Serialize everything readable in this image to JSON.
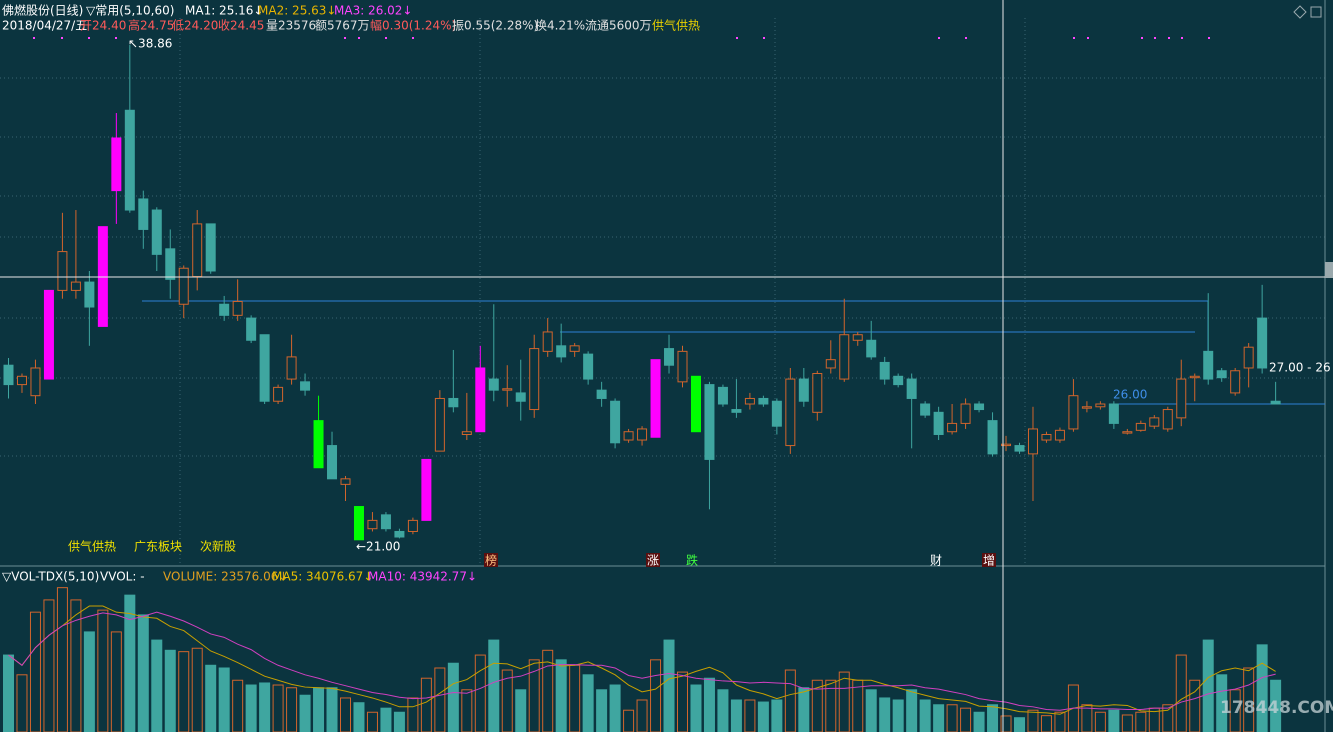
{
  "chart_data": {
    "type": "candlestick",
    "title": "佛燃股份(日线)",
    "info_top": [
      {
        "text": "▽常用(5,10,60)",
        "color": "#ffffff"
      },
      {
        "text": "MA1: 25.16↓",
        "color": "#ffffff"
      },
      {
        "text": "MA2: 25.63↓",
        "color": "#e8b400"
      },
      {
        "text": "MA3: 26.02↓",
        "color": "#ff44ff"
      }
    ],
    "info_day": [
      {
        "text": "2018/04/27/五",
        "color": "#ffffff"
      },
      {
        "text": "开24.40",
        "color": "#ff5a5a"
      },
      {
        "text": "高24.75",
        "color": "#ff5a5a"
      },
      {
        "text": "低24.20",
        "color": "#ff5a5a"
      },
      {
        "text": "收24.45",
        "color": "#ff5a5a"
      },
      {
        "text": "量23576",
        "color": "#e0e0e0"
      },
      {
        "text": "额5767万",
        "color": "#e0e0e0"
      },
      {
        "text": "幅0.30(1.24%)",
        "color": "#ff5a5a"
      },
      {
        "text": "振0.55(2.28%)",
        "color": "#e0e0e0"
      },
      {
        "text": "换4.21%",
        "color": "#e0e0e0"
      },
      {
        "text": "流通5600万",
        "color": "#e0e0e0"
      },
      {
        "text": "供气供热",
        "color": "#e8d000"
      }
    ],
    "annotations": {
      "high": "↖38.86",
      "low": "←21.00",
      "level": "26.00",
      "right": "27.00 - 26"
    },
    "tags": [
      "供气供热",
      "广东板块",
      "次新股"
    ],
    "markers": [
      "榜",
      "涨",
      "跌",
      "财",
      "增"
    ],
    "watermark": "178448.COM",
    "up_color": "#d2652c",
    "down_color": "#3fa6a0",
    "ylim": [
      20.09,
      39.83
    ],
    "open": [
      27.3,
      26.6,
      26.2,
      26.8,
      30.0,
      30.0,
      30.3,
      28.7,
      33.6,
      36.5,
      33.3,
      32.9,
      31.5,
      29.5,
      30.5,
      32.4,
      29.5,
      29.1,
      29.0,
      28.4,
      26.0,
      26.8,
      26.7,
      25.3,
      24.4,
      23.0,
      22.2,
      21.4,
      21.9,
      21.3,
      21.3,
      21.7,
      24.2,
      26.1,
      24.8,
      24.9,
      26.8,
      26.4,
      26.3,
      25.7,
      27.8,
      28.0,
      27.8,
      27.7,
      26.4,
      26.0,
      24.6,
      24.6,
      24.7,
      27.9,
      26.7,
      26.9,
      26.6,
      26.5,
      25.7,
      25.9,
      26.1,
      26.0,
      24.4,
      26.8,
      25.6,
      27.2,
      26.8,
      28.2,
      28.2,
      27.4,
      26.9,
      26.8,
      25.9,
      25.6,
      24.9,
      25.2,
      25.9,
      25.3,
      24.4,
      24.4,
      24.1,
      24.6,
      24.6,
      25.0,
      25.75,
      25.8,
      25.9,
      24.85,
      24.95,
      25.1,
      25.0,
      25.4,
      26.85,
      27.8,
      27.1,
      26.3,
      27.2,
      29.0,
      26.0
    ],
    "high": [
      27.56,
      27.0,
      27.5,
      30.0,
      32.8,
      32.9,
      30.7,
      32.3,
      36.4,
      38.86,
      33.6,
      33.0,
      32.2,
      30.9,
      32.9,
      32.4,
      29.8,
      30.4,
      29.1,
      28.4,
      26.6,
      28.4,
      27.0,
      26.2,
      24.9,
      23.3,
      22.2,
      22.0,
      22.0,
      21.4,
      21.8,
      23.9,
      26.4,
      27.85,
      26.3,
      28.0,
      29.5,
      27.3,
      27.5,
      28.4,
      29.0,
      28.8,
      28.1,
      27.8,
      26.7,
      26.1,
      25.0,
      25.1,
      27.5,
      28.4,
      28.0,
      26.9,
      26.7,
      26.6,
      26.8,
      26.3,
      26.2,
      26.1,
      27.2,
      27.2,
      27.1,
      28.2,
      29.7,
      28.5,
      28.9,
      27.6,
      27.0,
      27.0,
      26.0,
      25.8,
      25.9,
      26.1,
      26.0,
      25.6,
      24.75,
      24.5,
      25.8,
      24.9,
      25.05,
      26.8,
      26.0,
      26.0,
      26.0,
      25.0,
      25.3,
      25.5,
      25.8,
      27.5,
      27.0,
      29.9,
      27.2,
      27.2,
      28.1,
      30.2,
      26.7
    ],
    "low": [
      26.1,
      26.3,
      25.9,
      26.8,
      29.7,
      29.7,
      28.0,
      28.7,
      32.4,
      32.8,
      31.5,
      30.7,
      29.7,
      29.0,
      30.0,
      30.6,
      28.9,
      28.9,
      28.1,
      25.9,
      25.9,
      26.6,
      26.2,
      23.6,
      23.2,
      22.4,
      21.0,
      21.3,
      21.3,
      21.05,
      21.2,
      21.7,
      24.2,
      25.6,
      24.6,
      24.9,
      26.0,
      25.8,
      25.3,
      25.4,
      27.6,
      27.4,
      27.6,
      26.6,
      25.8,
      24.3,
      24.5,
      24.4,
      24.7,
      27.0,
      26.5,
      24.9,
      22.1,
      25.8,
      25.4,
      25.7,
      25.8,
      24.8,
      24.1,
      25.8,
      25.3,
      27.0,
      26.7,
      28.0,
      27.5,
      26.6,
      26.5,
      24.3,
      25.4,
      24.6,
      24.8,
      25.0,
      25.6,
      24.0,
      24.2,
      24.1,
      22.4,
      24.5,
      24.5,
      24.9,
      25.6,
      25.7,
      25.0,
      24.8,
      24.9,
      25.0,
      24.9,
      25.1,
      26.0,
      26.6,
      26.7,
      26.2,
      26.5,
      27.0,
      25.9
    ],
    "close": [
      26.6,
      26.9,
      27.2,
      30.0,
      31.4,
      30.3,
      29.4,
      32.3,
      35.5,
      32.9,
      32.2,
      31.3,
      30.4,
      30.8,
      32.4,
      30.7,
      29.1,
      29.6,
      28.2,
      26.0,
      26.5,
      27.6,
      26.4,
      23.6,
      23.2,
      23.2,
      21.0,
      21.7,
      21.4,
      21.1,
      21.7,
      23.9,
      26.1,
      25.8,
      24.9,
      27.2,
      26.4,
      26.45,
      26.0,
      27.9,
      28.5,
      27.6,
      28.0,
      26.8,
      26.1,
      24.5,
      24.9,
      25.0,
      27.5,
      27.3,
      27.8,
      24.9,
      23.9,
      25.9,
      25.6,
      26.1,
      25.9,
      25.1,
      26.8,
      26.0,
      27.0,
      27.5,
      28.4,
      28.4,
      27.6,
      26.8,
      26.6,
      26.1,
      25.5,
      24.8,
      25.2,
      25.9,
      25.7,
      24.1,
      24.45,
      24.2,
      25.0,
      24.8,
      24.95,
      26.2,
      25.8,
      25.9,
      25.2,
      24.9,
      25.2,
      25.4,
      25.7,
      26.8,
      26.9,
      26.8,
      26.85,
      27.1,
      27.95,
      27.2,
      25.9
    ],
    "colors": [
      null,
      null,
      null,
      "#ff00ff",
      null,
      null,
      null,
      "#ff00ff",
      "#ff00ff",
      null,
      null,
      null,
      null,
      null,
      null,
      null,
      null,
      null,
      null,
      null,
      null,
      null,
      null,
      "#00ff00",
      null,
      null,
      "#00ff00",
      null,
      null,
      null,
      null,
      "#ff00ff",
      null,
      null,
      null,
      "#ff00ff",
      null,
      null,
      null,
      null,
      null,
      null,
      null,
      null,
      null,
      null,
      null,
      null,
      "#ff00ff",
      null,
      null,
      "#00ff00",
      null,
      null,
      null,
      null,
      null,
      null,
      null,
      null,
      null,
      null,
      null,
      null,
      null,
      null,
      null,
      null,
      null,
      null,
      null,
      null,
      null,
      null,
      null,
      null,
      null,
      null,
      null,
      null,
      null,
      null,
      null,
      null,
      null,
      null,
      null,
      null,
      null,
      null,
      null,
      null,
      null,
      null,
      null
    ],
    "volume": {
      "title": "▽VOL-TDX(5,10)",
      "labels": [
        {
          "text": "VVOL: -",
          "color": "#ffffff"
        },
        {
          "text": "VOLUME: 23576.06↓",
          "color": "#e0a020"
        },
        {
          "text": "MA5: 34076.67↓",
          "color": "#e8c000"
        },
        {
          "text": "MA10: 43942.77↓",
          "color": "#ff44ff"
        }
      ],
      "ylim": [
        0,
        235000
      ],
      "ma5_color": "#c8a000",
      "ma10_color": "#d040c0",
      "values": [
        113000,
        84000,
        176000,
        194000,
        212000,
        194000,
        147000,
        179000,
        147000,
        201000,
        172000,
        135000,
        120000,
        118000,
        123000,
        98000,
        94000,
        76000,
        69000,
        72000,
        69000,
        65000,
        54000,
        65000,
        65000,
        50000,
        43000,
        29000,
        35000,
        29000,
        50000,
        79000,
        94000,
        101000,
        62000,
        113000,
        135000,
        91000,
        62000,
        106000,
        120000,
        106000,
        98000,
        84000,
        62000,
        69000,
        32000,
        47000,
        106000,
        135000,
        88000,
        69000,
        79000,
        62000,
        47000,
        47000,
        44000,
        47000,
        91000,
        65000,
        76000,
        76000,
        88000,
        76000,
        62000,
        50000,
        47000,
        62000,
        47000,
        40000,
        40000,
        35000,
        29000,
        40000,
        23576,
        21000,
        32000,
        24000,
        29000,
        69000,
        40000,
        29000,
        32000,
        25000,
        29000,
        35000,
        40000,
        113000,
        76000,
        135000,
        84000,
        62000,
        94000,
        128000,
        76000
      ],
      "ma5": [
        113000,
        98000,
        124000,
        142000,
        156000,
        172000,
        185000,
        185000,
        176000,
        174000,
        169000,
        167000,
        155000,
        149000,
        134000,
        119000,
        111000,
        102000,
        92000,
        82000,
        76000,
        70000,
        66000,
        65000,
        64000,
        60000,
        55000,
        50000,
        44000,
        37000,
        37000,
        44000,
        57000,
        71000,
        77000,
        90000,
        101000,
        100000,
        93000,
        101000,
        103000,
        97000,
        98000,
        103000,
        94000,
        84000,
        69000,
        59000,
        63000,
        78000,
        82000,
        89000,
        95000,
        87000,
        69000,
        61000,
        56000,
        49000,
        55000,
        59000,
        65000,
        71000,
        79000,
        76000,
        76000,
        70000,
        65000,
        59000,
        54000,
        49000,
        47000,
        45000,
        38000,
        37000,
        34077,
        30000,
        29000,
        28000,
        26000,
        35000,
        39000,
        38000,
        40000,
        39000,
        31000,
        30000,
        32000,
        48000,
        59000,
        80000,
        90000,
        94000,
        90000,
        101000,
        89000
      ],
      "ma10": [
        113000,
        98000,
        124000,
        142000,
        156000,
        164000,
        170000,
        175000,
        172000,
        165000,
        170000,
        176000,
        170000,
        163000,
        154000,
        144000,
        139000,
        129000,
        121000,
        108000,
        98000,
        91000,
        84000,
        79000,
        73000,
        68000,
        63000,
        58000,
        55000,
        51000,
        49000,
        50000,
        54000,
        58000,
        57000,
        64000,
        73000,
        79000,
        82000,
        89000,
        97000,
        99000,
        99000,
        98000,
        98000,
        94000,
        83000,
        79000,
        83000,
        86000,
        83000,
        79000,
        77000,
        75000,
        74000,
        72000,
        73000,
        72000,
        71000,
        64000,
        63000,
        64000,
        64000,
        66000,
        68000,
        68000,
        68000,
        69000,
        65000,
        63000,
        59000,
        55000,
        49000,
        46000,
        43943,
        39000,
        37000,
        33000,
        32000,
        35000,
        35000,
        34000,
        34000,
        33000,
        33000,
        35000,
        35000,
        44000,
        49000,
        56000,
        60000,
        63000,
        69000,
        80000,
        85000
      ]
    }
  }
}
